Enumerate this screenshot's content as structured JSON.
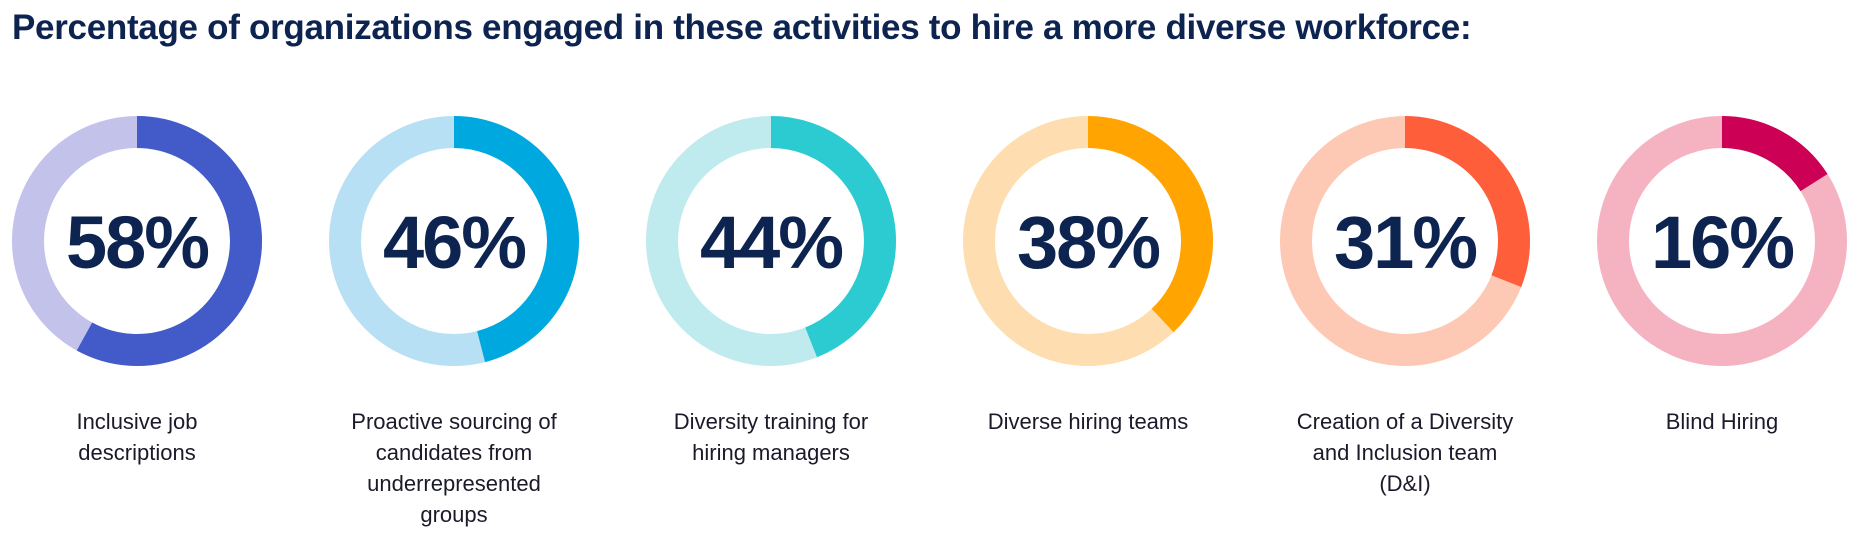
{
  "title": "Percentage of organizations engaged in these activities to hire a more diverse workforce:",
  "chart_data": {
    "type": "donut",
    "title": "Percentage of organizations engaged in these activities to hire a more diverse workforce:",
    "unit": "%",
    "items": [
      {
        "label": "Inclusive job descriptions",
        "value": 58,
        "display": "58%",
        "color": "#435bc8",
        "track_color": "#c2c2eb"
      },
      {
        "label": "Proactive sourcing of candidates from underrepresented groups",
        "value": 46,
        "display": "46%",
        "color": "#00a8e0",
        "track_color": "#b8e0f4"
      },
      {
        "label": "Diversity training for hiring managers",
        "value": 44,
        "display": "44%",
        "color": "#2ccbd2",
        "track_color": "#bfebee"
      },
      {
        "label": "Diverse hiring teams",
        "value": 38,
        "display": "38%",
        "color": "#ffa400",
        "track_color": "#fedeb0"
      },
      {
        "label": "Creation of a Diversity and Inclusion team (D&I)",
        "value": 31,
        "display": "31%",
        "color": "#ff5e3a",
        "track_color": "#fdc8b4"
      },
      {
        "label": "Blind Hiring",
        "value": 16,
        "display": "16%",
        "color": "#cc0055",
        "track_color": "#f5b3c2"
      }
    ]
  }
}
